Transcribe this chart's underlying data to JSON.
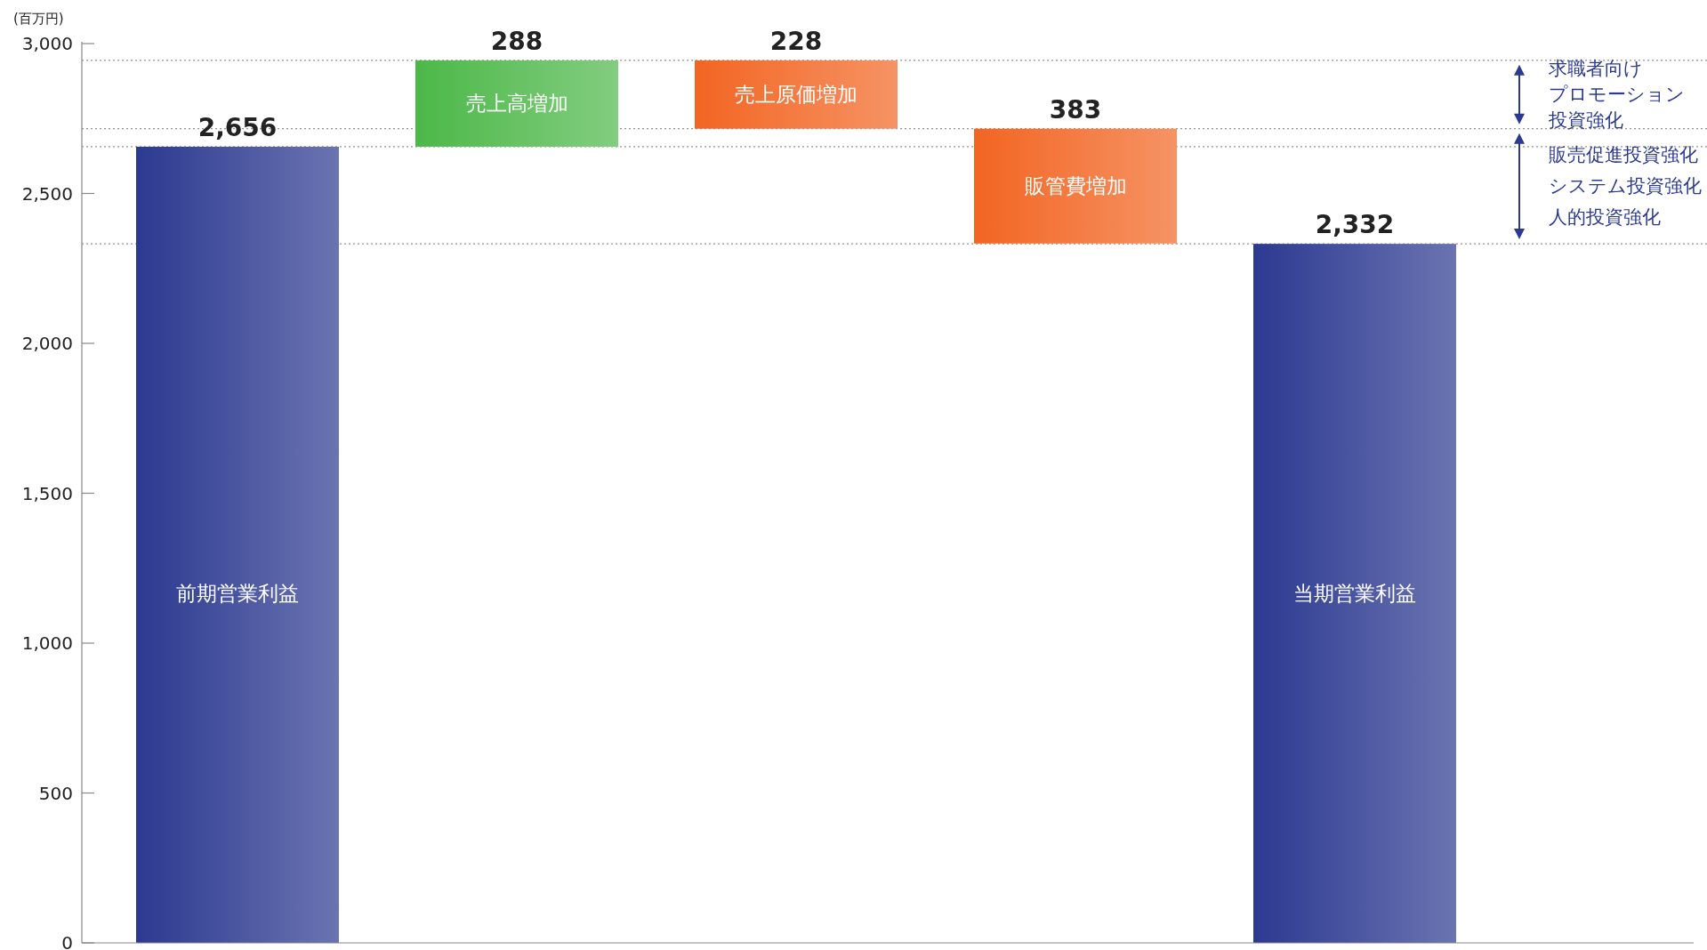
{
  "chart_data": {
    "type": "bar",
    "ylabel": "(百万円)",
    "categories": [
      "前期営業利益",
      "売上高増加",
      "売上原価増加",
      "販管費増加",
      "当期営業利益"
    ],
    "values": [
      2656,
      288,
      -228,
      -383,
      2332
    ],
    "base": [
      0,
      2656,
      2944,
      2716,
      0
    ],
    "colors": [
      "#2b3990",
      "#4cb848",
      "#f26522",
      "#f26522",
      "#2b3990"
    ],
    "value_labels": [
      "2,656",
      "288",
      "228",
      "383",
      "2,332"
    ],
    "ylim": [
      0,
      3000
    ],
    "yticks": [
      0,
      500,
      {
        "value": 1000,
        "label": "1,000"
      },
      {
        "value": 1500,
        "label": "1,500"
      },
      {
        "value": 2000,
        "label": "2,000"
      },
      {
        "value": 2500,
        "label": "2,500"
      },
      {
        "value": 3000,
        "label": "3,000"
      }
    ],
    "ref_lines": [
      {
        "axis": "y",
        "value": 2656,
        "line_style": "dotted"
      },
      {
        "axis": "y",
        "value": 2944,
        "line_style": "dotted"
      },
      {
        "axis": "y",
        "value": 2716,
        "line_style": "dotted"
      },
      {
        "axis": "y",
        "value": 2332,
        "line_style": "dotted"
      }
    ],
    "annotations": [
      "求職者向けプロモーション投資強化",
      "販売促進投資強化",
      "システム投資強化",
      "人的投資強化"
    ],
    "grid": false
  }
}
